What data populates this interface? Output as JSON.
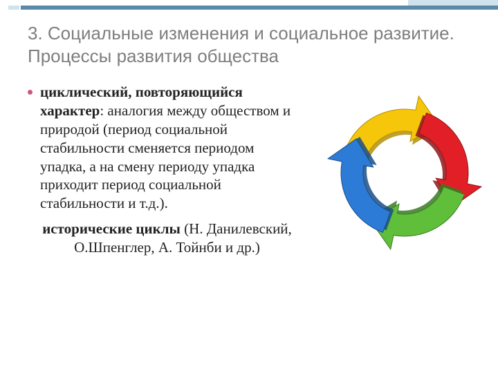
{
  "accent": {
    "bar1_color": "#cfe3ef",
    "bar2_color": "#5a8aa8",
    "bar3_color": "#cfe3ef"
  },
  "title": {
    "text": "3. Социальные изменения и социальное развитие. Процессы развития общества",
    "color": "#7e7e7e",
    "fontsize": 26
  },
  "body": {
    "bullet_color": "#c85a78",
    "text_color": "#222222",
    "para1_bold": "циклический, повторяющийся характер",
    "para1_rest": ": аналогия между обществом и природой (период социальной стабильности сменяется периодом упадка, а на смену периоду упадка приходит период социальной стабильности и т.д.).",
    "para2_bold": "исторические циклы",
    "para2_rest": " (Н. Данилевский, О.Шпенглер, А. Тойнби и др.)"
  },
  "arrows": {
    "yellow_fill": "#f6c60a",
    "yellow_shadow": "#b38f06",
    "red_fill": "#e21f26",
    "red_shadow": "#8e1518",
    "green_fill": "#5fbf3a",
    "green_shadow": "#3a7a23",
    "blue_fill": "#2c7bd6",
    "blue_shadow": "#1b4d86",
    "face_shadow": "#d0d0d0"
  }
}
